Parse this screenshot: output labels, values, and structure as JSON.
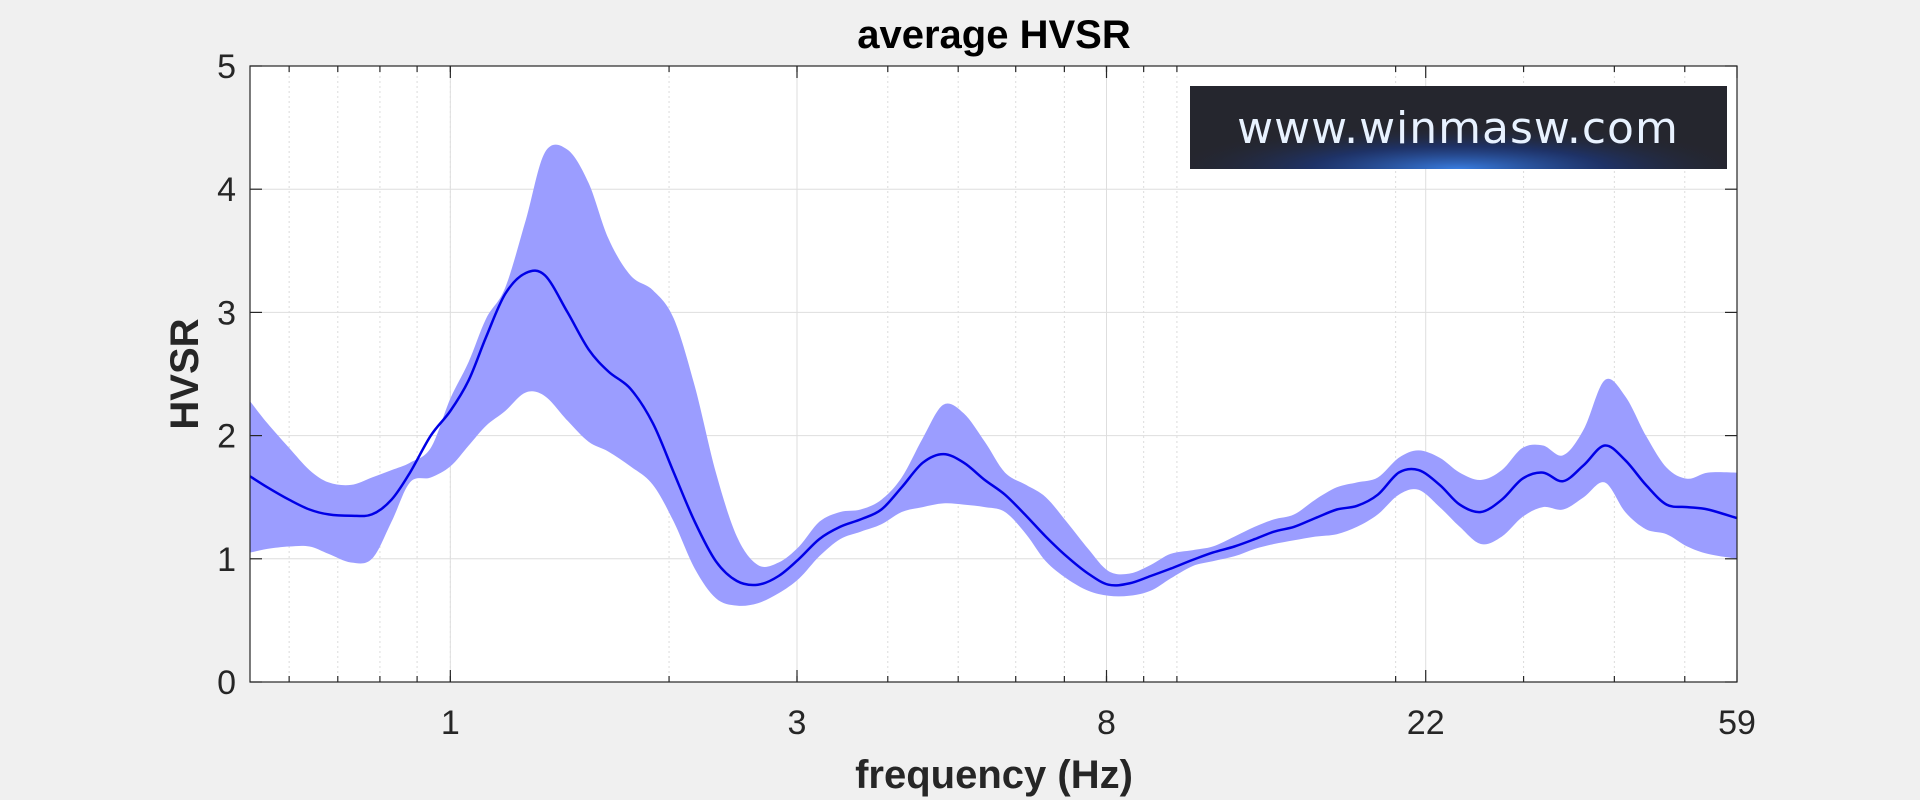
{
  "chart_data": {
    "type": "area",
    "title": "average HVSR",
    "xlabel": "frequency (Hz)",
    "ylabel": "HVSR",
    "xscale": "log",
    "xlim": [
      0.53,
      59
    ],
    "ylim": [
      0,
      5
    ],
    "xticks": [
      1,
      3,
      8,
      22,
      59
    ],
    "xtick_labels": [
      "1",
      "3",
      "8",
      "22",
      "59"
    ],
    "yticks": [
      0,
      1,
      2,
      3,
      4,
      5
    ],
    "ytick_labels": [
      "0",
      "1",
      "2",
      "3",
      "4",
      "5"
    ],
    "grid": true,
    "colors": {
      "band": "#9b9dff",
      "line": "#0000e6",
      "axes_bg": "#ffffff",
      "figure_bg": "#f0f0f0"
    },
    "series": [
      {
        "x": [
          0.53,
          0.56,
          0.6,
          0.64,
          0.68,
          0.73,
          0.78,
          0.83,
          0.88,
          0.94,
          1.0,
          1.06,
          1.12,
          1.19,
          1.27,
          1.35,
          1.45,
          1.55,
          1.65,
          1.77,
          1.9,
          2.03,
          2.17,
          2.32,
          2.48,
          2.65,
          2.83,
          3.02,
          3.22,
          3.44,
          3.67,
          3.92,
          4.18,
          4.47,
          4.77,
          5.09,
          5.44,
          5.8,
          6.2,
          6.6,
          7.05,
          7.55,
          8.05,
          8.6,
          9.2,
          9.8,
          10.5,
          11.2,
          12,
          12.8,
          13.6,
          14.5,
          15.5,
          16.6,
          17.7,
          18.9,
          20.2,
          21.5,
          23,
          24.5,
          26.2,
          28,
          29.9,
          31.9,
          34,
          36.3,
          38.8,
          41.4,
          44.2,
          47.2,
          50.4,
          53.8,
          59
        ],
        "values": [
          1.67,
          1.58,
          1.48,
          1.4,
          1.36,
          1.35,
          1.36,
          1.48,
          1.7,
          2.0,
          2.2,
          2.45,
          2.8,
          3.15,
          3.32,
          3.3,
          3.0,
          2.7,
          2.52,
          2.38,
          2.1,
          1.7,
          1.3,
          0.98,
          0.82,
          0.79,
          0.86,
          1.0,
          1.16,
          1.26,
          1.32,
          1.4,
          1.58,
          1.78,
          1.85,
          1.78,
          1.64,
          1.52,
          1.35,
          1.18,
          1.02,
          0.88,
          0.79,
          0.8,
          0.86,
          0.92,
          0.99,
          1.05,
          1.1,
          1.16,
          1.22,
          1.26,
          1.33,
          1.4,
          1.43,
          1.52,
          1.7,
          1.72,
          1.6,
          1.44,
          1.38,
          1.48,
          1.65,
          1.7,
          1.63,
          1.76,
          1.92,
          1.8,
          1.6,
          1.44,
          1.42,
          1.4,
          1.33
        ],
        "upper": [
          2.28,
          2.1,
          1.9,
          1.72,
          1.62,
          1.6,
          1.66,
          1.72,
          1.78,
          1.9,
          2.3,
          2.6,
          2.95,
          3.2,
          3.75,
          4.3,
          4.32,
          4.05,
          3.6,
          3.3,
          3.18,
          2.95,
          2.4,
          1.7,
          1.18,
          0.95,
          0.97,
          1.1,
          1.3,
          1.38,
          1.4,
          1.48,
          1.66,
          1.98,
          2.25,
          2.18,
          1.95,
          1.7,
          1.6,
          1.5,
          1.3,
          1.08,
          0.9,
          0.88,
          0.95,
          1.04,
          1.07,
          1.1,
          1.18,
          1.26,
          1.32,
          1.36,
          1.48,
          1.58,
          1.62,
          1.66,
          1.82,
          1.88,
          1.82,
          1.7,
          1.64,
          1.72,
          1.9,
          1.92,
          1.84,
          2.05,
          2.45,
          2.32,
          2.0,
          1.74,
          1.65,
          1.7,
          1.7
        ],
        "lower": [
          1.05,
          1.08,
          1.1,
          1.1,
          1.04,
          0.97,
          1.0,
          1.3,
          1.62,
          1.66,
          1.75,
          1.92,
          2.08,
          2.2,
          2.35,
          2.32,
          2.12,
          1.95,
          1.87,
          1.75,
          1.6,
          1.3,
          0.92,
          0.68,
          0.62,
          0.64,
          0.72,
          0.84,
          1.02,
          1.16,
          1.22,
          1.28,
          1.38,
          1.42,
          1.45,
          1.44,
          1.42,
          1.38,
          1.2,
          0.98,
          0.84,
          0.74,
          0.7,
          0.7,
          0.74,
          0.84,
          0.94,
          0.98,
          1.02,
          1.08,
          1.12,
          1.15,
          1.18,
          1.2,
          1.26,
          1.36,
          1.52,
          1.56,
          1.42,
          1.26,
          1.12,
          1.18,
          1.34,
          1.42,
          1.4,
          1.5,
          1.62,
          1.38,
          1.24,
          1.2,
          1.1,
          1.04,
          1.0
        ]
      }
    ]
  },
  "logo": {
    "text": "www.winmasw.com"
  }
}
